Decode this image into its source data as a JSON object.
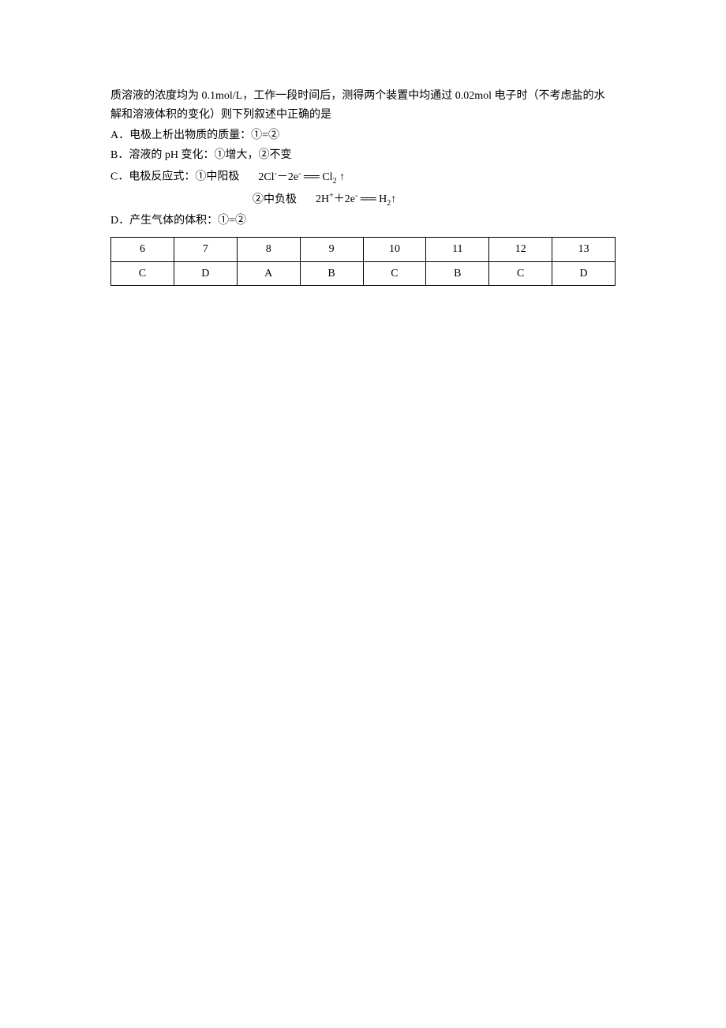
{
  "para1": "质溶液的浓度均为 0.1mol/L，工作一段时间后，测得两个装置中均通过 0.02mol 电子时（不考虑盐的水解和溶液体积的变化）则下列叙述中正确的是",
  "optA": "A．电极上析出物质的质量：①=②",
  "optB": "B．溶液的 pH 变化：①增大，②不变",
  "optC_prefix": "C．电极反应式：①中阳极",
  "optC_formula1_a": "2Cl",
  "optC_formula1_b": "－2e",
  "optC_formula1_c": " Cl",
  "optC_sub_prefix": "②中负极",
  "optC_formula2_a": "2H",
  "optC_formula2_b": "＋2e",
  "optC_formula2_c": " H",
  "optD": "D．产生气体的体积：①=②",
  "table": {
    "headers": [
      "6",
      "7",
      "8",
      "9",
      "10",
      "11",
      "12",
      "13"
    ],
    "answers": [
      "C",
      "D",
      "A",
      "B",
      "C",
      "B",
      "C",
      "D"
    ]
  }
}
